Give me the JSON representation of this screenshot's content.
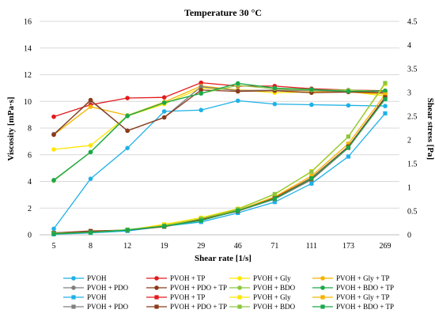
{
  "chart_data": {
    "type": "line",
    "title": "Temperature 30 °C",
    "xlabel": "Shear rate [1/s]",
    "ylabel_left": "Viscosity [mPa·s]",
    "ylabel_right": "Shear stress [Pa]",
    "categories": [
      "5",
      "8",
      "12",
      "19",
      "29",
      "46",
      "71",
      "111",
      "173",
      "269"
    ],
    "ylim_left": [
      0,
      16
    ],
    "yticks_left": [
      0,
      2,
      4,
      6,
      8,
      10,
      12,
      14,
      16
    ],
    "ylim_right": [
      0,
      4.5
    ],
    "yticks_right": [
      0,
      0.5,
      1,
      1.5,
      2,
      2.5,
      3,
      3.5,
      4,
      4.5
    ],
    "grid": "horizontal",
    "legend_position": "bottom",
    "series": [
      {
        "name": "PVOH",
        "axis": "left",
        "marker": "circle",
        "color": "#1fb1e6",
        "values": [
          0.45,
          4.2,
          6.5,
          9.25,
          9.35,
          10.05,
          9.8,
          9.75,
          9.7,
          9.65
        ]
      },
      {
        "name": "PVOH + TP",
        "axis": "left",
        "marker": "circle",
        "color": "#e31a1c",
        "values": [
          8.85,
          9.75,
          10.25,
          10.3,
          11.4,
          11.15,
          11.15,
          10.95,
          10.85,
          10.8
        ]
      },
      {
        "name": "PVOH + Gly",
        "axis": "left",
        "marker": "circle",
        "color": "#ffe600",
        "values": [
          6.4,
          6.7,
          8.9,
          9.8,
          11.0,
          10.85,
          10.65,
          10.7,
          10.75,
          10.4
        ]
      },
      {
        "name": "PVOH + Gly + TP",
        "axis": "left",
        "marker": "circle",
        "color": "#f5b400",
        "values": [
          7.5,
          9.6,
          8.95,
          9.95,
          11.15,
          10.85,
          10.8,
          10.8,
          10.7,
          10.55
        ]
      },
      {
        "name": "PVOH + PDO",
        "axis": "left",
        "marker": "circle",
        "color": "#808080",
        "values": [
          7.55,
          10.05,
          7.8,
          8.8,
          11.1,
          10.8,
          10.85,
          10.8,
          10.75,
          10.7
        ]
      },
      {
        "name": "PVOH + PDO + TP",
        "axis": "left",
        "marker": "circle",
        "color": "#8b3a1a",
        "values": [
          7.5,
          10.1,
          7.8,
          8.8,
          10.85,
          10.75,
          10.8,
          10.65,
          10.7,
          10.65
        ]
      },
      {
        "name": "PVOH + BDO",
        "axis": "left",
        "marker": "circle",
        "color": "#8cc63f",
        "values": [
          4.05,
          6.2,
          8.95,
          9.9,
          10.6,
          11.2,
          10.95,
          10.85,
          10.85,
          10.75
        ]
      },
      {
        "name": "PVOH + BDO + TP",
        "axis": "left",
        "marker": "circle",
        "color": "#1aa84a",
        "values": [
          4.1,
          6.2,
          8.9,
          9.9,
          10.6,
          11.35,
          11.0,
          10.9,
          10.75,
          10.8
        ]
      },
      {
        "name": "PVOH",
        "axis": "right",
        "marker": "square",
        "color": "#1fb1e6",
        "values": [
          0.01,
          0.04,
          0.08,
          0.18,
          0.27,
          0.46,
          0.69,
          1.08,
          1.65,
          2.56
        ]
      },
      {
        "name": "PVOH + TP",
        "axis": "right",
        "marker": "square",
        "color": "#e31a1c",
        "values": [
          0.04,
          0.06,
          0.1,
          0.19,
          0.31,
          0.51,
          0.78,
          1.2,
          1.86,
          2.88
        ]
      },
      {
        "name": "PVOH + Gly",
        "axis": "right",
        "marker": "square",
        "color": "#ffe600",
        "values": [
          0.03,
          0.06,
          0.1,
          0.22,
          0.36,
          0.55,
          0.85,
          1.34,
          2.07,
          3.18
        ]
      },
      {
        "name": "PVOH + Gly + TP",
        "axis": "right",
        "marker": "square",
        "color": "#f5b400",
        "values": [
          0.04,
          0.07,
          0.1,
          0.2,
          0.33,
          0.52,
          0.8,
          1.24,
          1.92,
          2.96
        ]
      },
      {
        "name": "PVOH + PDO",
        "axis": "right",
        "marker": "square",
        "color": "#808080",
        "values": [
          0.04,
          0.07,
          0.1,
          0.18,
          0.31,
          0.5,
          0.75,
          1.16,
          1.83,
          2.88
        ]
      },
      {
        "name": "PVOH + PDO + TP",
        "axis": "right",
        "marker": "square",
        "color": "#8b3a1a",
        "values": [
          0.04,
          0.08,
          0.1,
          0.17,
          0.32,
          0.5,
          0.77,
          1.18,
          1.86,
          2.9
        ]
      },
      {
        "name": "PVOH + BDO",
        "axis": "right",
        "marker": "square",
        "color": "#8cc63f",
        "values": [
          0.03,
          0.05,
          0.11,
          0.19,
          0.34,
          0.54,
          0.86,
          1.33,
          2.07,
          3.2
        ]
      },
      {
        "name": "PVOH + BDO + TP",
        "axis": "right",
        "marker": "square",
        "color": "#1aa84a",
        "values": [
          0.02,
          0.05,
          0.1,
          0.18,
          0.3,
          0.51,
          0.76,
          1.19,
          1.84,
          2.86
        ]
      }
    ]
  }
}
